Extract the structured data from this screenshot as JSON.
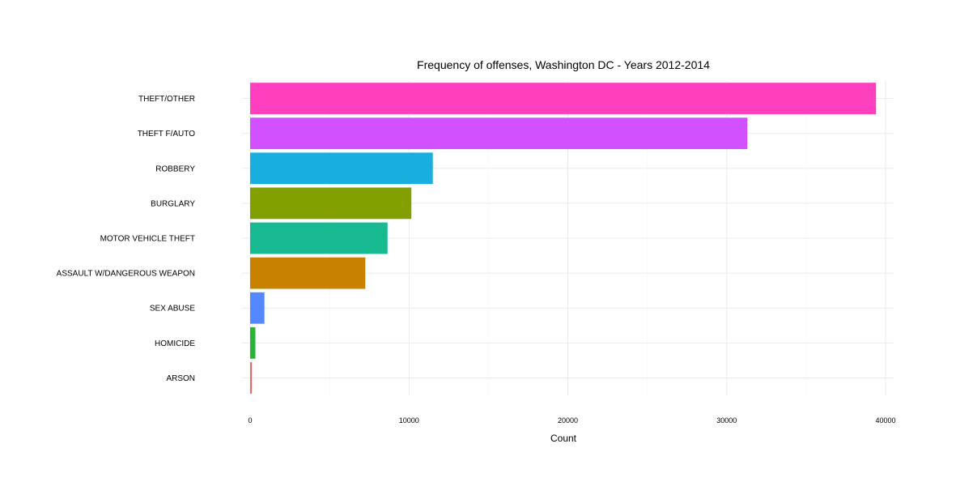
{
  "chart_data": {
    "type": "bar",
    "orientation": "horizontal",
    "title": "Frequency of offenses, Washington DC - Years 2012-2014",
    "xlabel": "Count",
    "ylabel": "",
    "xlim": [
      0,
      40000
    ],
    "x_ticks": [
      "0",
      "10000",
      "20000",
      "30000",
      "40000"
    ],
    "x_tick_values": [
      0,
      10000,
      20000,
      30000,
      40000
    ],
    "grid": true,
    "legend": "none",
    "categories": [
      "THEFT/OTHER",
      "THEFT F/AUTO",
      "ROBBERY",
      "BURGLARY",
      "MOTOR VEHICLE THEFT",
      "ASSAULT W/DANGEROUS WEAPON",
      "SEX ABUSE",
      "HOMICIDE",
      "ARSON"
    ],
    "values": [
      39400,
      31300,
      11500,
      10150,
      8650,
      7250,
      900,
      330,
      110
    ],
    "colors": [
      "#FF40BE",
      "#D150FF",
      "#18AEDD",
      "#829F00",
      "#17B990",
      "#C88200",
      "#5588FF",
      "#2AB339",
      "#E06B66"
    ]
  }
}
